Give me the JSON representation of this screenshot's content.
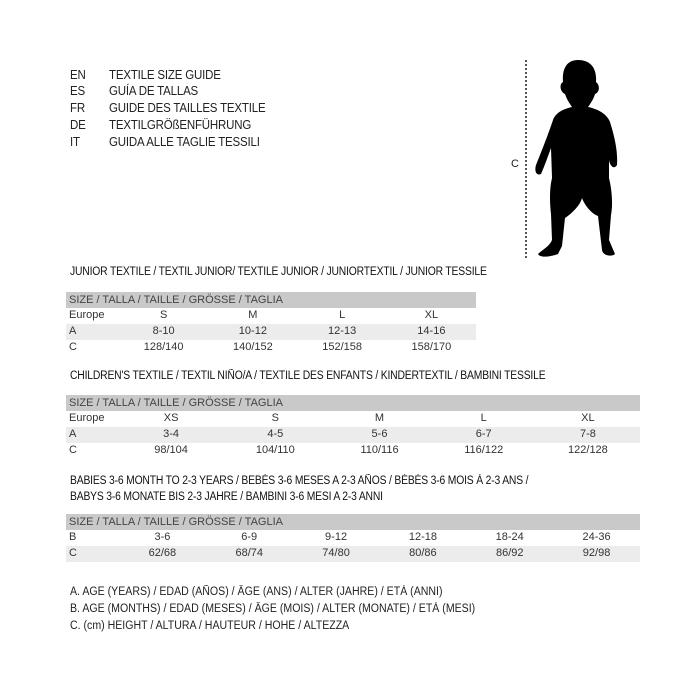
{
  "languages": [
    {
      "code": "EN",
      "text": "TEXTILE SIZE GUIDE"
    },
    {
      "code": "ES",
      "text": "GUÍA DE TALLAS"
    },
    {
      "code": "FR",
      "text": "GUIDE DES TAILLES TEXTILE"
    },
    {
      "code": "DE",
      "text": "TEXTILGRÖßENFÜHRUNG"
    },
    {
      "code": "IT",
      "text": "GUIDA ALLE TAGLIE TESSILI"
    }
  ],
  "figure": {
    "measure_label": "C",
    "icon": "child-silhouette-icon"
  },
  "junior": {
    "title": "JUNIOR TEXTILE / TEXTIL JUNIOR/ TEXTILE JUNIOR / JUNIORTEXTIL / JUNIOR TESSILE",
    "header": "SIZE / TALLA / TAILLE / GRÖSSE / TAGLIA",
    "rows": [
      {
        "label": "Europe",
        "values": [
          "S",
          "M",
          "L",
          "XL"
        ]
      },
      {
        "label": "A",
        "values": [
          "8-10",
          "10-12",
          "12-13",
          "14-16"
        ]
      },
      {
        "label": "C",
        "values": [
          "128/140",
          "140/152",
          "152/158",
          "158/170"
        ]
      }
    ]
  },
  "children": {
    "title": "CHILDREN'S TEXTILE / TEXTIL NIÑO/A / TEXTILE DES ENFANTS / KINDERTEXTIL / BAMBINI TESSILE",
    "header": "SIZE / TALLA / TAILLE / GRÖSSE / TAGLIA",
    "rows": [
      {
        "label": "Europe",
        "values": [
          "XS",
          "S",
          "M",
          "L",
          "XL"
        ]
      },
      {
        "label": "A",
        "values": [
          "3-4",
          "4-5",
          "5-6",
          "6-7",
          "7-8"
        ]
      },
      {
        "label": "C",
        "values": [
          "98/104",
          "104/110",
          "110/116",
          "116/122",
          "122/128"
        ]
      }
    ]
  },
  "babies": {
    "title_line1": "BABIES 3-6 MONTH TO 2-3 YEARS / BEBÉS 3-6 MESES A 2-3 AÑOS / BÉBÉS 3-6 MOIS À 2-3 ANS /",
    "title_line2": "BABYS 3-6 MONATE BIS 2-3 JAHRE / BAMBINI 3-6 MESI A 2-3 ANNI",
    "header": "SIZE / TALLA / TAILLE / GRÖSSE / TAGLIA",
    "rows": [
      {
        "label": "B",
        "values": [
          "3-6",
          "6-9",
          "9-12",
          "12-18",
          "18-24",
          "24-36"
        ]
      },
      {
        "label": "C",
        "values": [
          "62/68",
          "68/74",
          "74/80",
          "80/86",
          "86/92",
          "92/98"
        ]
      }
    ]
  },
  "legend": [
    "A. AGE (YEARS) / EDAD (AÑOS) / ÂGE (ANS) / ALTER (JAHRE) / ETÀ (ANNI)",
    "B. AGE (MONTHS) / EDAD (MESES) / ÂGE (MOIS) / ALTER (MONATE) / ETÀ (MESI)",
    "C. (cm) HEIGHT / ALTURA / HAUTEUR / HÖHE / ALTEZZA"
  ]
}
